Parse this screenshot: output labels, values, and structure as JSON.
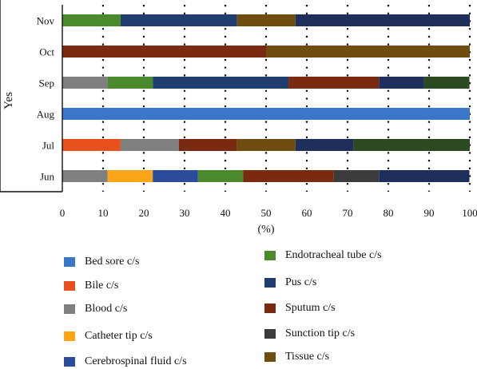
{
  "chart_data": {
    "type": "bar",
    "orientation": "horizontal",
    "stacked": true,
    "ylabel": "Yes",
    "xlabel": "(%)",
    "xlim": [
      0,
      100
    ],
    "xticks": [
      "0",
      "10",
      "20",
      "30",
      "40",
      "50",
      "60",
      "70",
      "80",
      "90",
      "100"
    ],
    "grid": "dotted vertical",
    "legend_position": "bottom",
    "categories": [
      "Jun",
      "Jul",
      "Aug",
      "Sep",
      "Oct",
      "Nov"
    ],
    "series": [
      {
        "name": "Bed sore c/s",
        "color": "#3a77c8",
        "values": [
          0,
          0,
          100,
          0,
          0,
          0
        ]
      },
      {
        "name": "Bile c/s",
        "color": "#e8501e",
        "values": [
          0,
          14.3,
          0,
          0,
          0,
          0
        ]
      },
      {
        "name": "Blood c/s",
        "color": "#808080",
        "values": [
          11.1,
          14.3,
          0,
          11.1,
          0,
          0
        ]
      },
      {
        "name": "Catheter tip c/s",
        "color": "#fba619",
        "values": [
          11.1,
          0,
          0,
          0,
          0,
          0
        ]
      },
      {
        "name": "Cerebrospinal fluid c/s",
        "color": "#2b4c9b",
        "values": [
          11.1,
          0,
          0,
          0,
          0,
          0
        ]
      },
      {
        "name": "Endotracheal tube c/s",
        "color": "#4a8a2c",
        "values": [
          11.1,
          0,
          0,
          11.1,
          0,
          14.3
        ]
      },
      {
        "name": "Pus c/s",
        "color": "#1f3d6e",
        "values": [
          0,
          0,
          0,
          33.3,
          0,
          28.6
        ]
      },
      {
        "name": "Sputum c/s",
        "color": "#7b2a12",
        "values": [
          22.2,
          14.3,
          0,
          22.2,
          50,
          0
        ]
      },
      {
        "name": "Sunction tip c/s",
        "color": "#3c3c3c",
        "values": [
          11.1,
          0,
          0,
          0,
          0,
          0
        ]
      },
      {
        "name": "Tissue c/s",
        "color": "#6e4d0e",
        "values": [
          0,
          14.3,
          0,
          0,
          50,
          14.3
        ]
      },
      {
        "name": "Navy",
        "legend": false,
        "color": "#1f2f5c",
        "values": [
          22.2,
          14.3,
          0,
          11.1,
          0,
          42.9
        ]
      },
      {
        "name": "Dark green",
        "legend": false,
        "color": "#2c4a22",
        "values": [
          0,
          28.6,
          0,
          11.1,
          0,
          0
        ]
      }
    ]
  },
  "legend": {
    "left": [
      "Bed sore c/s",
      "Bile c/s",
      "Blood c/s",
      "Catheter tip c/s",
      "Cerebrospinal fluid c/s"
    ],
    "right": [
      "Endotracheal tube c/s",
      "Pus c/s",
      "Sputum c/s",
      "Sunction tip c/s",
      "Tissue c/s"
    ]
  }
}
